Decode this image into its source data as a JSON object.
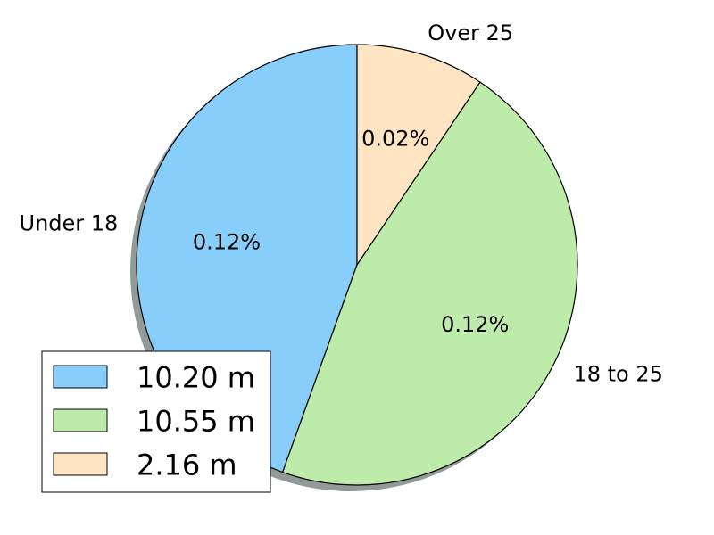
{
  "chart_data": {
    "type": "pie",
    "title": "",
    "start_angle_deg": 90,
    "counterclock": true,
    "shadow": true,
    "slices": [
      {
        "label": "Under 18",
        "value": 10.2,
        "pct_label": "0.12%",
        "legend_label": "10.20 m",
        "color": "#87CEFA"
      },
      {
        "label": "18 to 25",
        "value": 10.55,
        "pct_label": "0.12%",
        "legend_label": "10.55 m",
        "color": "#BDECAA"
      },
      {
        "label": "Over 25",
        "value": 2.16,
        "pct_label": "0.02%",
        "legend_label": "2.16 m",
        "color": "#FFE4C4"
      }
    ],
    "legend_position": "lower-left"
  }
}
